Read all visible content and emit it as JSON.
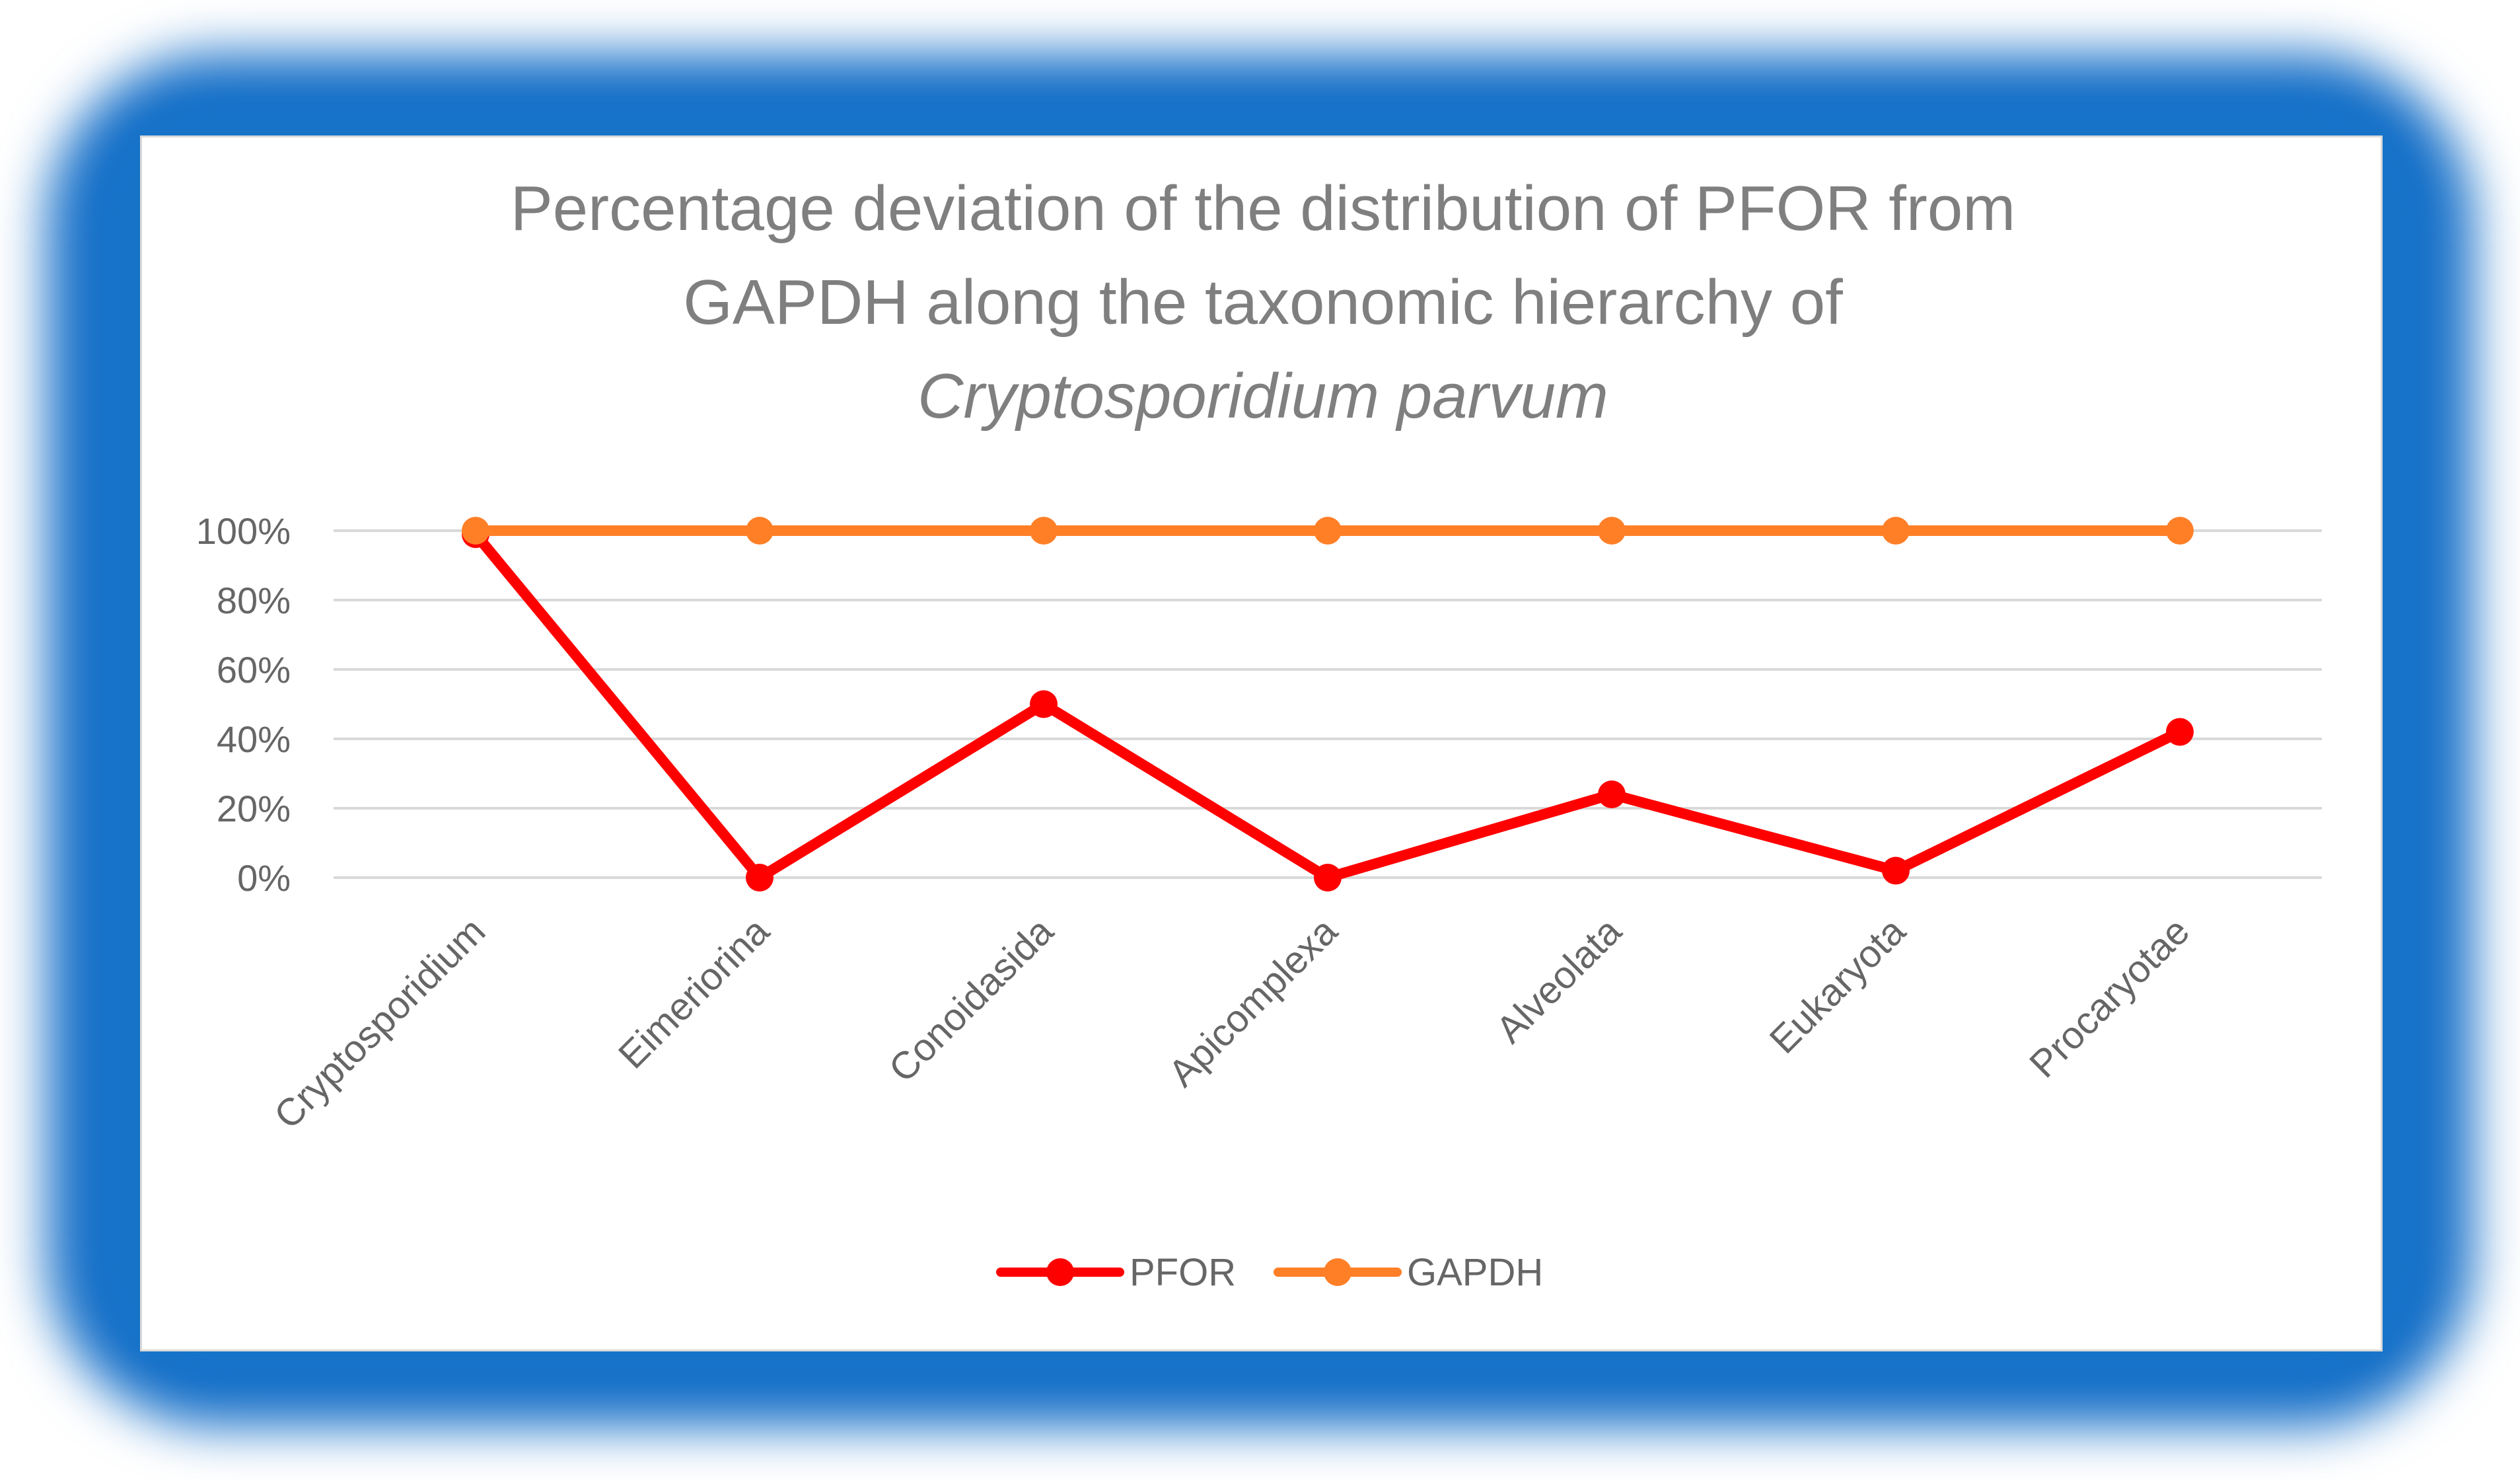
{
  "chart_data": {
    "type": "line",
    "title_line1": "Percentage deviation of the distribution of PFOR from",
    "title_line2": "GAPDH along the taxonomic hierarchy of",
    "title_line3": "Cryptosporidium parvum",
    "categories": [
      "Cryptosporidium",
      "Eimeriorina",
      "Conoidasida",
      "Apicomplexa",
      "Alveolata",
      "Eukaryota",
      "Procaryotae"
    ],
    "series": [
      {
        "name": "PFOR",
        "color": "#ff0000",
        "values": [
          99,
          0,
          50,
          0,
          24,
          2,
          42
        ]
      },
      {
        "name": "GAPDH",
        "color": "#ff7f27",
        "values": [
          100,
          100,
          100,
          100,
          100,
          100,
          100
        ]
      }
    ],
    "yticks": [
      "0%",
      "20%",
      "40%",
      "60%",
      "80%",
      "100%"
    ],
    "ylim": [
      0,
      100
    ],
    "grid": true,
    "legend_position": "bottom"
  }
}
